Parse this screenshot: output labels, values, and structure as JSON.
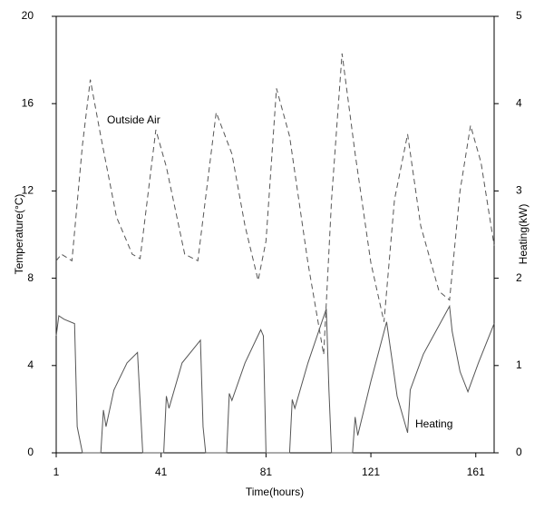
{
  "chart_data": {
    "type": "line",
    "x_label": "Time(hours)",
    "y_label": "Temperature(°C)",
    "y2_label": "Heating(kW)",
    "xlim": [
      1,
      168
    ],
    "xticks": [
      1,
      41,
      81,
      121,
      161
    ],
    "ylim": [
      0,
      20
    ],
    "yticks": [
      0,
      4,
      8,
      12,
      16,
      20
    ],
    "y2lim": [
      0,
      5
    ],
    "y2ticks": [
      0,
      1,
      2,
      3,
      4,
      5
    ],
    "series": [
      {
        "name": "Outside Air",
        "color": "#555555",
        "dashed": true,
        "x": [
          1,
          3,
          7,
          11,
          14,
          18,
          24,
          30,
          33,
          39,
          43,
          50,
          55,
          62,
          68,
          73,
          78,
          81,
          85,
          90,
          97,
          103,
          106,
          110,
          115,
          121,
          126,
          130,
          135,
          140,
          147,
          151,
          155,
          159,
          163,
          168
        ],
        "values": [
          8.8,
          9.1,
          8.8,
          14.1,
          17.1,
          14.5,
          10.8,
          9.1,
          8.9,
          14.8,
          13.1,
          9.1,
          8.8,
          15.6,
          13.7,
          10.4,
          7.9,
          9.7,
          16.7,
          14.5,
          8.7,
          4.5,
          11.6,
          18.3,
          13.7,
          8.7,
          6.0,
          11.6,
          14.6,
          10.4,
          7.4,
          7.0,
          12.0,
          15.0,
          13.3,
          9.5
        ]
      },
      {
        "name": "Heating",
        "color": "#555555",
        "dashed": false,
        "axis": "y2",
        "x": [
          1,
          2,
          4,
          8,
          9,
          11,
          18,
          19,
          20,
          23,
          28,
          32,
          34,
          42,
          43,
          44,
          49,
          56,
          57,
          58,
          66,
          67,
          68,
          73,
          79,
          80,
          81,
          90,
          91,
          92,
          97,
          104,
          105,
          106,
          114,
          115,
          116,
          121,
          127,
          129,
          131,
          135,
          136,
          141,
          151,
          152,
          155,
          158,
          162,
          168
        ],
        "values": [
          1.34,
          1.57,
          1.53,
          1.48,
          0.3,
          0,
          0,
          0.49,
          0.3,
          0.72,
          1.03,
          1.15,
          0,
          0,
          0.65,
          0.51,
          1.03,
          1.29,
          0.3,
          0,
          0,
          0.68,
          0.6,
          1.03,
          1.41,
          1.34,
          0,
          0,
          0.61,
          0.51,
          1.03,
          1.65,
          0.72,
          0,
          0,
          0.41,
          0.2,
          0.82,
          1.5,
          1.08,
          0.65,
          0.23,
          0.72,
          1.13,
          1.68,
          1.39,
          0.93,
          0.7,
          1.03,
          1.48
        ]
      }
    ]
  }
}
